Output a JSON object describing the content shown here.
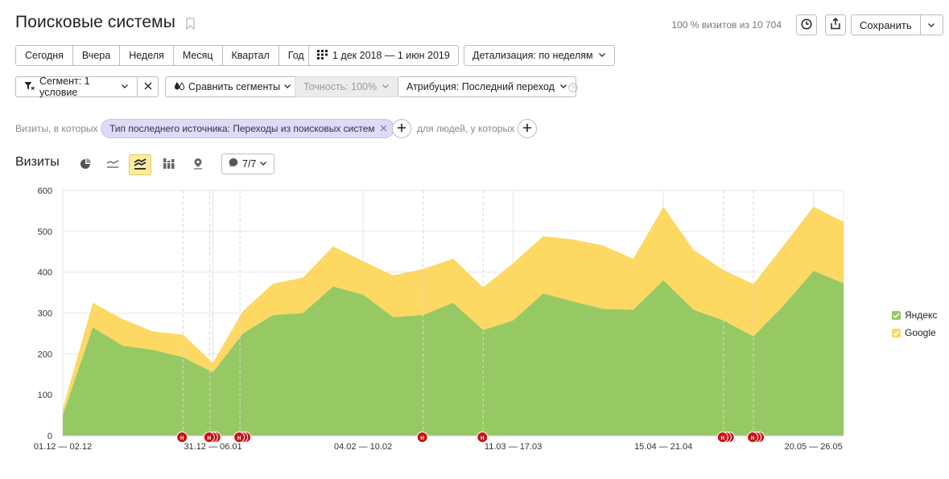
{
  "header": {
    "title": "Поисковые системы",
    "visits_share": "100 % визитов из 10 704",
    "save_label": "Сохранить"
  },
  "periods": [
    "Сегодня",
    "Вчера",
    "Неделя",
    "Месяц",
    "Квартал",
    "Год"
  ],
  "date_range": "1 дек 2018 — 1 июн 2019",
  "detail": "Детализация: по неделям",
  "segment": "Сегмент: 1 условие",
  "compare": "Сравнить сегменты",
  "accuracy": "Точность: 100%",
  "attribution": "Атрибуция: Последний переход",
  "filter": {
    "prefix": "Визиты, в которых",
    "chip": "Тип последнего источника: Переходы из поисковых систем",
    "people": "для людей, у которых"
  },
  "section": {
    "title": "Визиты",
    "notes": "7/7"
  },
  "colors": {
    "yandex": "#96c963",
    "google": "#fdd862",
    "grid": "#e6e6e6",
    "note": "#cc1111"
  },
  "chart_data": {
    "type": "area",
    "stacked": true,
    "ylim": [
      0,
      600
    ],
    "yticks": [
      0,
      100,
      200,
      300,
      400,
      500,
      600
    ],
    "x_labels": [
      {
        "index": 0,
        "label": "01.12 — 02.12"
      },
      {
        "index": 5,
        "label": "31.12 — 06.01"
      },
      {
        "index": 10,
        "label": "04.02 — 10.02"
      },
      {
        "index": 15,
        "label": "11.03 — 17.03"
      },
      {
        "index": 20,
        "label": "15.04 — 21.04"
      },
      {
        "index": 25,
        "label": "20.05 — 26.05"
      }
    ],
    "series": [
      {
        "name": "Яндекс",
        "values": [
          50,
          265,
          220,
          210,
          192,
          155,
          250,
          295,
          300,
          365,
          345,
          290,
          295,
          325,
          258,
          282,
          348,
          328,
          310,
          308,
          380,
          308,
          282,
          243,
          318,
          403,
          373
        ]
      },
      {
        "name": "Google",
        "values": [
          15,
          60,
          65,
          45,
          55,
          23,
          55,
          77,
          87,
          98,
          82,
          102,
          113,
          108,
          105,
          140,
          140,
          152,
          155,
          125,
          180,
          147,
          123,
          128,
          147,
          157,
          150
        ]
      }
    ],
    "legend_position": "right",
    "grid": true,
    "notes": [
      {
        "x": 4.0,
        "count": 1
      },
      {
        "x": 4.9,
        "count": 3
      },
      {
        "x": 5.9,
        "count": 3
      },
      {
        "x": 12.0,
        "count": 1
      },
      {
        "x": 14.0,
        "count": 1
      },
      {
        "x": 22.0,
        "count": 3
      },
      {
        "x": 23.0,
        "count": 3
      }
    ],
    "note_label": "н"
  }
}
